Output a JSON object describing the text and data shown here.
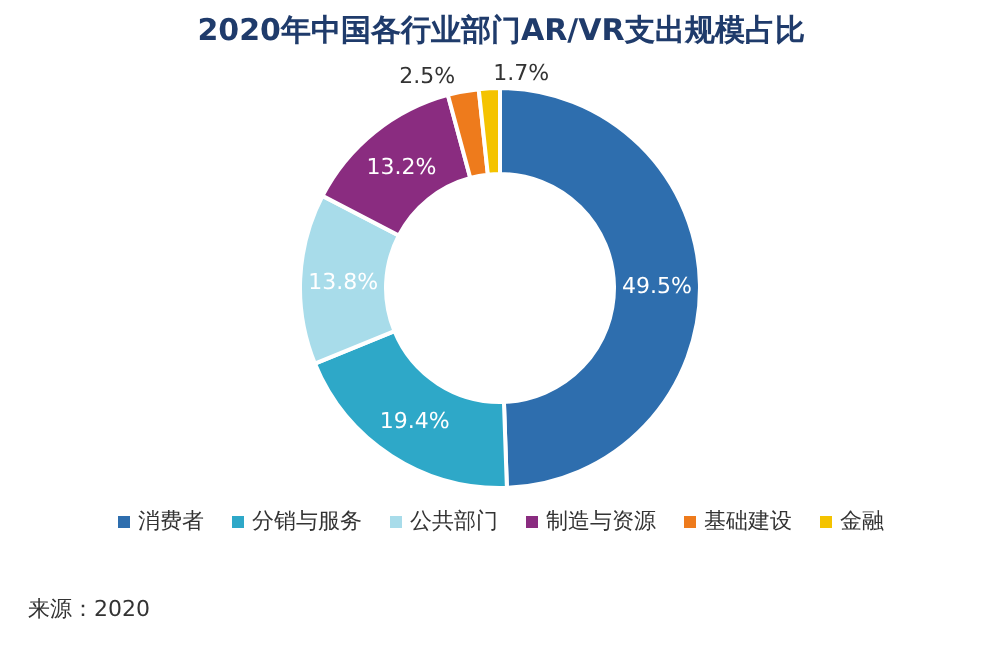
{
  "chart_data": {
    "type": "donut",
    "title": "2020年中国各行业部门AR/VR支出规模占比",
    "categories": [
      "消费者",
      "分销与服务",
      "公共部门",
      "制造与资源",
      "基础建设",
      "金融"
    ],
    "values": [
      49.5,
      19.4,
      13.8,
      13.2,
      2.5,
      1.7
    ],
    "colors": [
      "#2e6eae",
      "#2ea8c8",
      "#a8dcea",
      "#8a2c80",
      "#ee7b1c",
      "#f4c300"
    ],
    "value_labels": [
      "49.5%",
      "19.4%",
      "13.8%",
      "13.2%",
      "2.5%",
      "1.7%"
    ],
    "legend": "bottom",
    "annotations": [
      "来源：2020"
    ]
  }
}
